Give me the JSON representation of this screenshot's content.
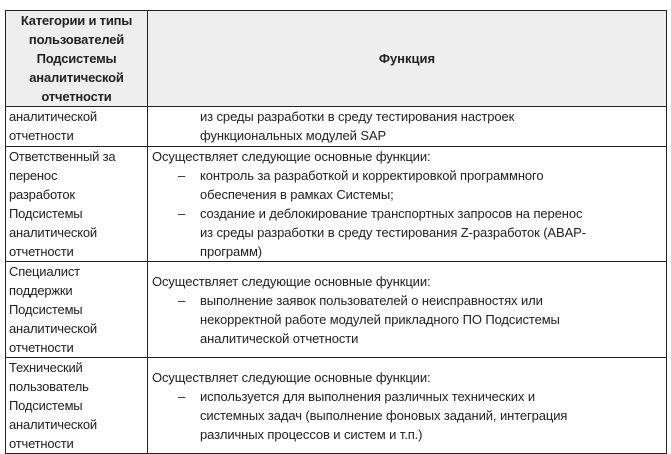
{
  "header": {
    "col1_lines": [
      "Категории и типы",
      "пользователей",
      "Подсистемы",
      "аналитической",
      "отчетности"
    ],
    "col2": "Функция"
  },
  "rows": [
    {
      "role_lines": [
        "аналитической",
        "отчетности"
      ],
      "cont_lines": [
        "из среды разработки в среду тестирования настроек",
        "функциональных модулей SAP"
      ]
    },
    {
      "role_lines": [
        "Ответственный за",
        "перенос",
        "разработок",
        "Подсистемы",
        "аналитической",
        "отчетности"
      ],
      "intro": "Осуществляет следующие основные функции:",
      "bullets": [
        [
          "контроль за разработкой и корректировкой программного",
          "обеспечения в рамках Системы;"
        ],
        [
          "создание и деблокирование транспортных запросов на перенос",
          "из среды разработки в среду тестирования Z-разработок (ABAP-",
          "программ)"
        ]
      ]
    },
    {
      "role_lines": [
        "Специалист",
        "поддержки",
        "Подсистемы",
        "аналитической",
        "отчетности"
      ],
      "intro": "Осуществляет следующие основные функции:",
      "bullets": [
        [
          "выполнение заявок пользователей о неисправностях или",
          "некорректной работе модулей прикладного ПО Подсистемы",
          "аналитической отчетности"
        ]
      ]
    },
    {
      "role_lines": [
        "Технический",
        "пользователь",
        "Подсистемы",
        "аналитической",
        "отчетности"
      ],
      "intro": "Осуществляет следующие основные функции:",
      "bullets": [
        [
          "используется для выполнения различных технических и",
          "системных задач (выполнение фоновых заданий, интеграция",
          "различных процессов и систем и т.п.)"
        ]
      ]
    }
  ],
  "bullet_glyph": "–"
}
